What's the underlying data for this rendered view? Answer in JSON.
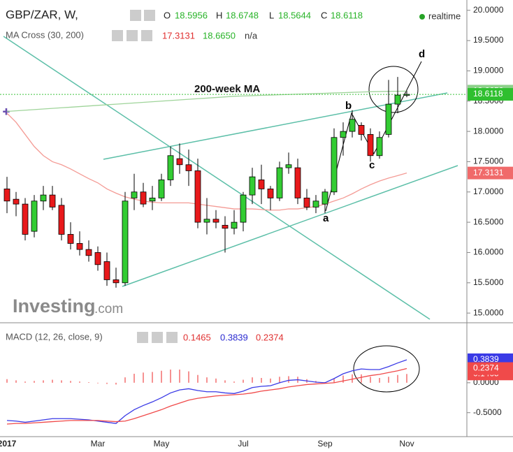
{
  "chart_data": [
    {
      "type": "candlestick",
      "symbol": "GBP/ZAR, W,",
      "ohlc_labels": [
        "O",
        "H",
        "L",
        "C"
      ],
      "indicator": "MA Cross (30, 200)",
      "indicator_extra": "n/a",
      "status": "realtime",
      "logo": [
        "Investing",
        ".com"
      ],
      "annotations": [
        "200-week MA",
        "a",
        "b",
        "c",
        "d"
      ],
      "categories": [
        "2017",
        null,
        null,
        null,
        null,
        null,
        null,
        null,
        null,
        null,
        "Mar",
        null,
        null,
        null,
        null,
        null,
        null,
        "May",
        null,
        null,
        null,
        null,
        null,
        null,
        null,
        null,
        "Jul",
        null,
        null,
        null,
        null,
        null,
        null,
        null,
        null,
        "Sep",
        null,
        null,
        null,
        null,
        null,
        null,
        null,
        null,
        "Nov"
      ],
      "open": [
        17.05,
        16.88,
        16.8,
        16.35,
        16.85,
        16.95,
        16.78,
        16.3,
        16.15,
        16.05,
        16.0,
        15.85,
        15.55,
        15.5,
        16.9,
        17.0,
        16.85,
        16.9,
        17.2,
        17.55,
        17.45,
        17.35,
        16.5,
        16.55,
        16.45,
        16.4,
        16.5,
        16.95,
        17.2,
        17.05,
        16.9,
        17.4,
        17.4,
        16.9,
        16.75,
        16.8,
        17.0,
        17.9,
        18.0,
        18.1,
        17.95,
        17.6,
        17.95,
        18.45,
        18.5956
      ],
      "high": [
        17.25,
        17.0,
        16.9,
        16.95,
        17.1,
        17.1,
        16.9,
        16.5,
        16.35,
        16.2,
        16.1,
        16.0,
        15.75,
        17.0,
        17.3,
        17.15,
        17.1,
        17.3,
        17.75,
        17.8,
        17.7,
        17.55,
        16.9,
        16.7,
        16.6,
        16.7,
        17.0,
        17.4,
        17.45,
        17.1,
        17.5,
        17.65,
        17.55,
        17.05,
        16.95,
        17.05,
        18.05,
        18.15,
        18.35,
        18.15,
        18.05,
        18.0,
        18.85,
        18.9,
        18.6748
      ],
      "low": [
        16.65,
        16.6,
        16.2,
        16.25,
        16.7,
        16.7,
        16.2,
        16.05,
        15.95,
        15.85,
        15.7,
        15.45,
        15.42,
        15.45,
        16.7,
        16.75,
        16.7,
        16.85,
        17.1,
        17.3,
        17.1,
        16.4,
        16.3,
        16.4,
        16.0,
        16.3,
        16.35,
        16.8,
        16.8,
        16.7,
        16.85,
        17.3,
        16.8,
        16.7,
        16.65,
        16.65,
        16.95,
        17.6,
        17.9,
        17.85,
        17.5,
        17.55,
        17.9,
        18.3,
        18.5644
      ],
      "close": [
        16.85,
        16.8,
        16.3,
        16.85,
        16.95,
        16.75,
        16.3,
        16.15,
        16.05,
        15.95,
        15.8,
        15.55,
        15.5,
        16.85,
        17.0,
        16.8,
        16.9,
        17.2,
        17.6,
        17.45,
        17.35,
        16.5,
        16.55,
        16.5,
        16.4,
        16.5,
        16.95,
        17.25,
        17.05,
        16.9,
        17.4,
        17.45,
        16.9,
        16.75,
        16.85,
        17.0,
        17.9,
        18.0,
        18.2,
        17.95,
        17.6,
        17.9,
        18.45,
        18.6,
        18.6118
      ],
      "up_color": "#33cc33",
      "down_color": "#e8191b",
      "overlays": [
        {
          "color": "#f49b95",
          "values": [
            18.3,
            18.15,
            17.95,
            17.75,
            17.6,
            17.5,
            17.45,
            17.38,
            17.3,
            17.22,
            17.15,
            17.05,
            16.98,
            16.92,
            16.88,
            16.85,
            16.83,
            16.82,
            16.82,
            16.82,
            16.82,
            16.8,
            16.78,
            16.76,
            16.74,
            16.72,
            16.72,
            16.72,
            16.71,
            16.7,
            16.7,
            16.72,
            16.72,
            16.74,
            16.76,
            16.8,
            16.85,
            16.9,
            16.97,
            17.05,
            17.12,
            17.18,
            17.23,
            17.27,
            17.3131
          ]
        },
        {
          "color": "#9fd49a",
          "values": [
            18.33,
            18.34,
            18.35,
            18.36,
            18.37,
            18.38,
            18.39,
            18.4,
            18.41,
            18.42,
            18.43,
            18.44,
            18.45,
            18.46,
            18.47,
            18.48,
            18.49,
            18.5,
            18.51,
            18.52,
            18.53,
            18.54,
            18.55,
            18.56,
            18.57,
            18.58,
            18.585,
            18.59,
            18.595,
            18.6,
            18.605,
            18.61,
            18.615,
            18.62,
            18.625,
            18.63,
            18.635,
            18.64,
            18.645,
            18.65,
            18.655,
            18.658,
            18.661,
            18.663,
            18.665
          ],
          "value_labels": [
            null,
            null,
            null,
            null,
            null,
            null,
            null,
            null,
            null,
            null,
            null,
            null,
            null,
            null,
            null,
            null,
            null,
            null,
            null,
            null,
            null,
            null,
            null,
            null,
            null,
            null,
            null,
            null,
            null,
            null,
            null,
            null,
            null,
            null,
            null,
            null,
            null,
            null,
            null,
            null,
            null,
            null,
            null,
            null,
            "18.6650"
          ]
        }
      ],
      "ylim": [
        14.84,
        20.17
      ],
      "yticks": [
        {
          "value": 15,
          "label": "15.0000"
        },
        {
          "value": 15.5,
          "label": "15.5000"
        },
        {
          "value": 16,
          "label": "16.0000"
        },
        {
          "value": 16.5,
          "label": "16.5000"
        },
        {
          "value": 17,
          "label": "17.0000"
        },
        {
          "value": 17.5,
          "label": "17.5000"
        },
        {
          "value": 18,
          "label": "18.0000"
        },
        {
          "value": 18.5,
          "label": "18.5000"
        },
        {
          "value": 19,
          "label": "19.0000"
        },
        {
          "value": 19.5,
          "label": "19.5000"
        },
        {
          "value": 20,
          "label": "20.0000"
        }
      ],
      "grid": false
    },
    {
      "type": "macd",
      "title": "MACD (12, 26, close, 9)",
      "series": [
        {
          "style": "histogram",
          "color": "#f04a4a",
          "values": [
            0.06,
            0.04,
            0.02,
            0.03,
            0.04,
            0.05,
            0.04,
            0.03,
            0.02,
            0.01,
            -0.01,
            -0.02,
            -0.03,
            0.09,
            0.15,
            0.17,
            0.18,
            0.2,
            0.22,
            0.22,
            0.19,
            0.13,
            0.09,
            0.07,
            0.04,
            0.02,
            0.05,
            0.09,
            0.08,
            0.07,
            0.1,
            0.11,
            0.1,
            0.06,
            0.03,
            0.01,
            0.07,
            0.12,
            0.14,
            0.14,
            0.1,
            0.08,
            0.1,
            0.13,
            0.1465
          ]
        },
        {
          "style": "line",
          "color": "#3a3ae6",
          "values": [
            -0.63,
            -0.64,
            -0.66,
            -0.64,
            -0.62,
            -0.6,
            -0.6,
            -0.6,
            -0.61,
            -0.62,
            -0.64,
            -0.66,
            -0.68,
            -0.55,
            -0.45,
            -0.38,
            -0.32,
            -0.25,
            -0.17,
            -0.12,
            -0.1,
            -0.13,
            -0.15,
            -0.15,
            -0.17,
            -0.18,
            -0.14,
            -0.08,
            -0.06,
            -0.05,
            0.0,
            0.04,
            0.05,
            0.03,
            0.01,
            0.0,
            0.07,
            0.15,
            0.2,
            0.23,
            0.22,
            0.22,
            0.27,
            0.33,
            0.3839
          ]
        },
        {
          "style": "line",
          "color": "#f04a4a",
          "values": [
            -0.69,
            -0.68,
            -0.68,
            -0.67,
            -0.66,
            -0.65,
            -0.64,
            -0.63,
            -0.63,
            -0.63,
            -0.63,
            -0.64,
            -0.65,
            -0.64,
            -0.6,
            -0.55,
            -0.5,
            -0.45,
            -0.39,
            -0.34,
            -0.29,
            -0.26,
            -0.24,
            -0.22,
            -0.21,
            -0.2,
            -0.19,
            -0.17,
            -0.14,
            -0.12,
            -0.1,
            -0.07,
            -0.05,
            -0.03,
            -0.02,
            -0.01,
            0.0,
            0.03,
            0.06,
            0.09,
            0.12,
            0.14,
            0.17,
            0.2,
            0.2374
          ]
        }
      ],
      "ylim": [
        -0.9,
        0.99
      ],
      "yticks": [
        {
          "value": -0.5,
          "label": "-0.5000"
        },
        {
          "value": 0,
          "label": "0.0000"
        }
      ]
    }
  ]
}
